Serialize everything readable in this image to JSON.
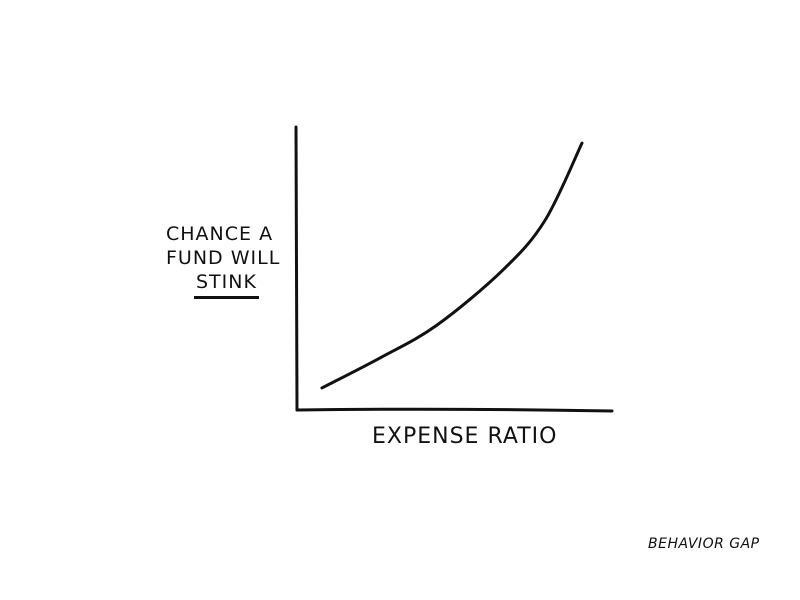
{
  "chart_data": {
    "type": "line",
    "title": "",
    "xlabel": "EXPENSE RATIO",
    "ylabel_lines": [
      "CHANCE A",
      "FUND WILL",
      "STINK"
    ],
    "ylabel_underlined_word": "STINK",
    "xlim": [
      0,
      100
    ],
    "ylim": [
      0,
      100
    ],
    "grid": false,
    "ticks": false,
    "series": [
      {
        "x": [
          8.2,
          26.6,
          44.6,
          65.5,
          78.8,
          90.5
        ],
        "y": [
          7.8,
          18.4,
          30,
          49.5,
          67,
          94.3
        ]
      }
    ],
    "line_color": "#111111"
  },
  "signature": "BEHAVIOR GAP"
}
